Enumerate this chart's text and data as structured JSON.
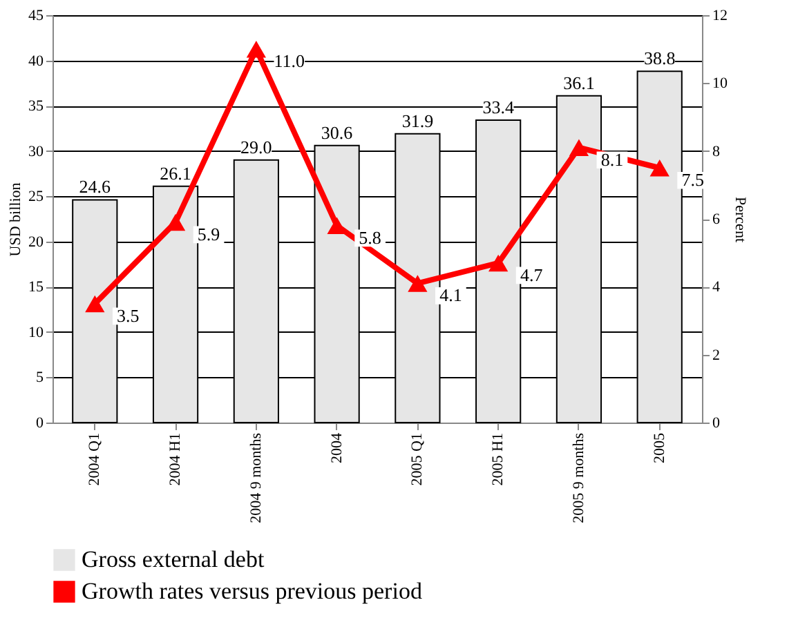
{
  "chart_data": {
    "type": "bar",
    "ylabel": "USD billion",
    "y2label": "Percent",
    "categories": [
      "2004 Q1",
      "2004 H1",
      "2004 9 months",
      "2004",
      "2005 Q1",
      "2005 H1",
      "2005 9 months",
      "2005"
    ],
    "series": [
      {
        "name": "Gross external debt",
        "color": "#e6e6e6",
        "values": [
          24.6,
          26.1,
          29.0,
          30.6,
          31.9,
          33.4,
          36.1,
          38.8
        ],
        "value_labels": [
          "24.6",
          "26.1",
          "29.0",
          "30.6",
          "31.9",
          "33.4",
          "36.1",
          "38.8"
        ]
      },
      {
        "name": "Growth rates versus previous period",
        "type": "line",
        "axis": "y2",
        "color": "#ff0000",
        "marker": "triangle",
        "values": [
          3.5,
          5.9,
          11.0,
          5.8,
          4.1,
          4.7,
          8.1,
          7.5
        ],
        "value_labels": [
          "3.5",
          "5.9",
          "11.0",
          "5.8",
          "4.1",
          "4.7",
          "8.1",
          "7.5"
        ]
      }
    ],
    "ylim": [
      0,
      45
    ],
    "yticks": [
      0,
      5,
      10,
      15,
      20,
      25,
      30,
      35,
      40,
      45
    ],
    "y2lim": [
      0,
      12
    ],
    "y2ticks": [
      0,
      2,
      4,
      6,
      8,
      10,
      12
    ],
    "grid": "y",
    "legend": "bottom"
  }
}
